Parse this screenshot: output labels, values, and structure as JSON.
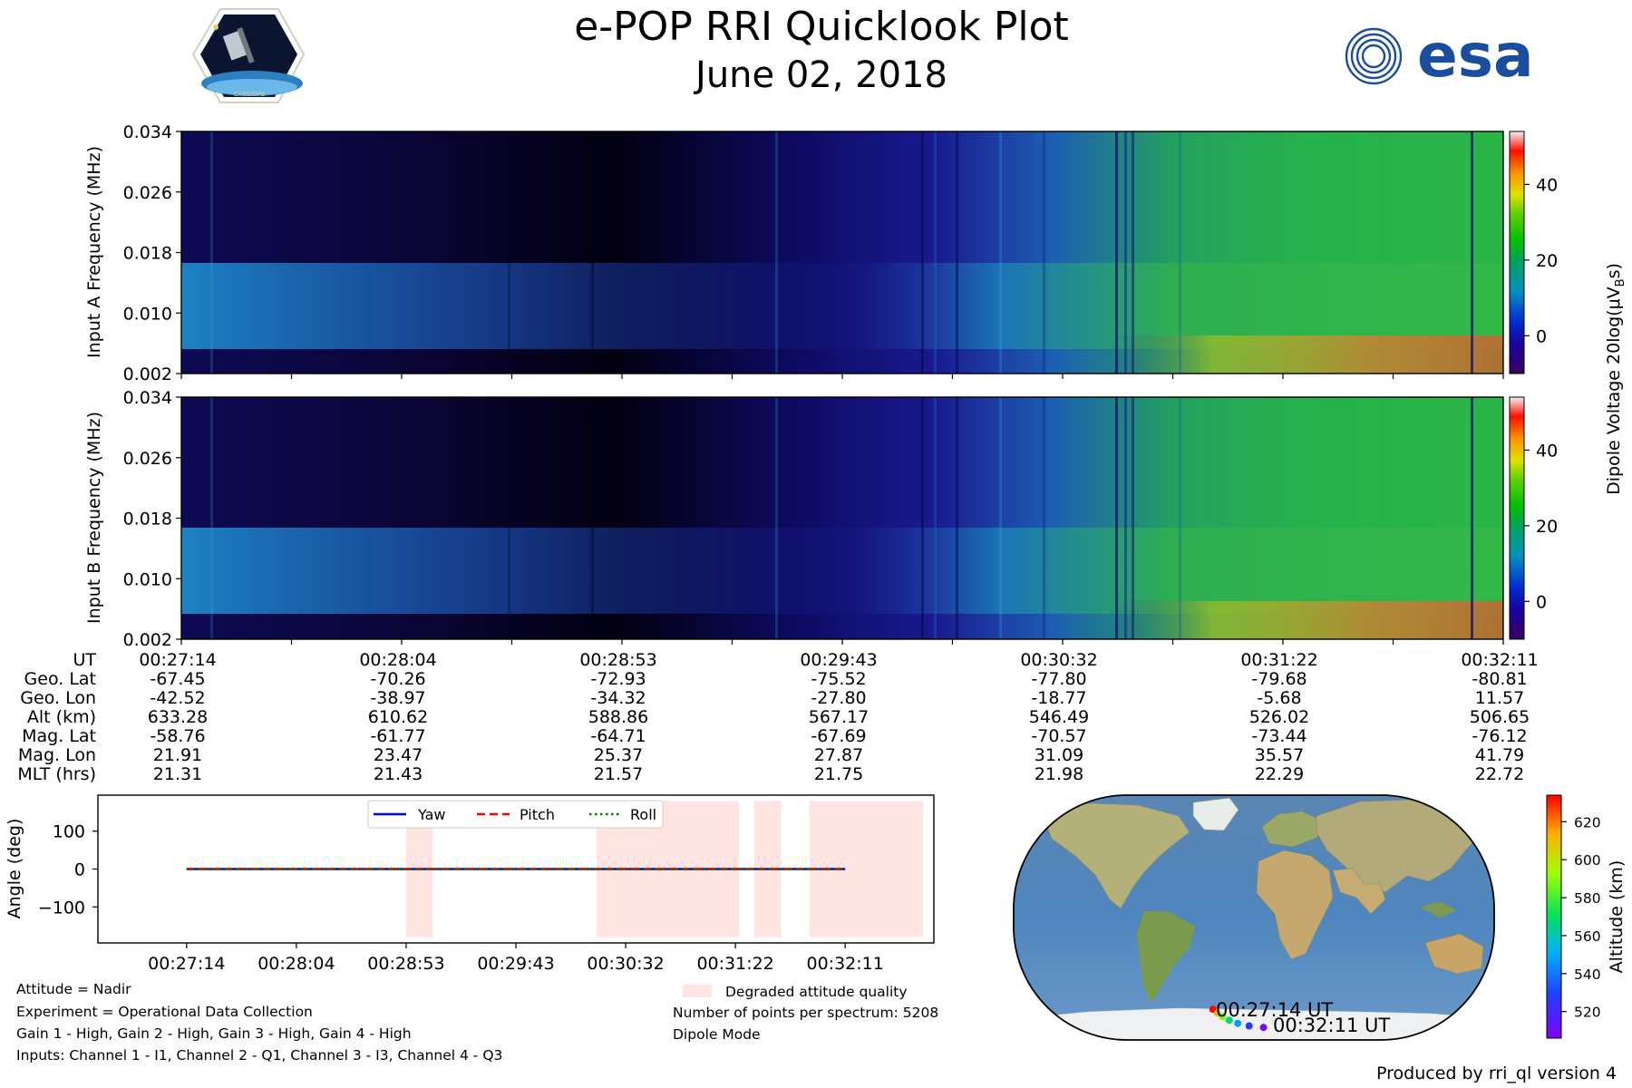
{
  "header": {
    "title": "e-POP RRI Quicklook Plot",
    "subtitle": "June 02, 2018",
    "cassiope_badge": "CASSIOPE",
    "esa_logo": "esa"
  },
  "colors": {
    "esa_blue": "#1a4d9e",
    "yaw": "#0000ff",
    "pitch": "#ff0000",
    "roll": "#008000",
    "degraded": "#ffe4e1"
  },
  "chart_data": [
    {
      "type": "heatmap",
      "name": "input-a-spectrogram",
      "ylabel": "Input A Frequency (MHz)",
      "yticks": [
        "0.002",
        "0.010",
        "0.018",
        "0.026",
        "0.034"
      ],
      "ylim": [
        0.002,
        0.034
      ],
      "xlim": [
        "00:27:14",
        "00:32:11"
      ]
    },
    {
      "type": "heatmap",
      "name": "input-b-spectrogram",
      "ylabel": "Input B Frequency (MHz)",
      "yticks": [
        "0.002",
        "0.010",
        "0.018",
        "0.026",
        "0.034"
      ],
      "ylim": [
        0.002,
        0.034
      ],
      "xlim": [
        "00:27:14",
        "00:32:11"
      ]
    },
    {
      "type": "heatmap",
      "name": "dipole-voltage-colorbar",
      "label": "Dipole Voltage 20log(μV",
      "label_sub": "B",
      "label_end": "s)",
      "ticks": [
        "0",
        "20",
        "40"
      ],
      "range": [
        -10,
        54
      ]
    },
    {
      "type": "table",
      "name": "ephemeris",
      "rows": [
        {
          "label": "UT",
          "values": [
            "00:27:14",
            "00:28:04",
            "00:28:53",
            "00:29:43",
            "00:30:32",
            "00:31:22",
            "00:32:11"
          ]
        },
        {
          "label": "Geo. Lat",
          "values": [
            "-67.45",
            "-70.26",
            "-72.93",
            "-75.52",
            "-77.80",
            "-79.68",
            "-80.81"
          ]
        },
        {
          "label": "Geo. Lon",
          "values": [
            "-42.52",
            "-38.97",
            "-34.32",
            "-27.80",
            "-18.77",
            "-5.68",
            "11.57"
          ]
        },
        {
          "label": "Alt (km)",
          "values": [
            "633.28",
            "610.62",
            "588.86",
            "567.17",
            "546.49",
            "526.02",
            "506.65"
          ]
        },
        {
          "label": "Mag. Lat",
          "values": [
            "-58.76",
            "-61.77",
            "-64.71",
            "-67.69",
            "-70.57",
            "-73.44",
            "-76.12"
          ]
        },
        {
          "label": "Mag. Lon",
          "values": [
            "21.91",
            "23.47",
            "25.37",
            "27.87",
            "31.09",
            "35.57",
            "41.79"
          ]
        },
        {
          "label": "MLT (hrs)",
          "values": [
            "21.31",
            "21.43",
            "21.57",
            "21.75",
            "21.98",
            "22.29",
            "22.72"
          ]
        }
      ]
    },
    {
      "type": "line",
      "name": "attitude",
      "ylabel": "Angle (deg)",
      "ylim": [
        -195,
        195
      ],
      "yticks": [
        100,
        0,
        -100
      ],
      "ytick_labels": [
        "100",
        "0",
        "−100"
      ],
      "xticks": [
        "00:27:14",
        "00:28:04",
        "00:28:53",
        "00:29:43",
        "00:30:32",
        "00:31:22",
        "00:32:11"
      ],
      "xlim_sec": [
        -40,
        337
      ],
      "x_range_sec": [
        0,
        297
      ],
      "series": [
        {
          "name": "Yaw",
          "value": 0
        },
        {
          "name": "Pitch",
          "value": 0
        },
        {
          "name": "Roll",
          "value": 0
        }
      ],
      "degraded_intervals_sec": [
        [
          99,
          111
        ],
        [
          185,
          249
        ],
        [
          256,
          268
        ],
        [
          281,
          332
        ]
      ],
      "degraded_range": [
        -180,
        180
      ]
    },
    {
      "type": "line",
      "name": "altitude-colorbar",
      "ylabel": "Altitude (km)",
      "ticks": [
        520,
        540,
        560,
        580,
        600,
        620
      ],
      "range": [
        506,
        634
      ]
    },
    {
      "type": "scatter",
      "name": "ground-track",
      "start_label": "00:27:14 UT",
      "end_label": "00:32:11 UT",
      "lat": [
        -67.45,
        -70.26,
        -72.93,
        -75.52,
        -77.8,
        -79.68,
        -80.81
      ],
      "lon": [
        -42.52,
        -38.97,
        -34.32,
        -27.8,
        -18.77,
        -5.68,
        11.57
      ],
      "alt": [
        633.28,
        610.62,
        588.86,
        567.17,
        546.49,
        526.02,
        506.65
      ]
    }
  ],
  "footer": {
    "info_lines": [
      "Attitude = Nadir",
      "Experiment = Operational Data Collection",
      "Gain 1 - High, Gain 2 - High, Gain 3 - High, Gain 4 - High",
      "Inputs: Channel 1 - I1, Channel 2 - Q1, Channel 3 - I3, Channel 4 - Q3"
    ],
    "degraded_label": "Degraded attitude quality",
    "points_per_spectrum": "Number of points per spectrum: 5208",
    "mode": "Dipole Mode",
    "produced_by": "Produced by rri_ql version 4"
  }
}
